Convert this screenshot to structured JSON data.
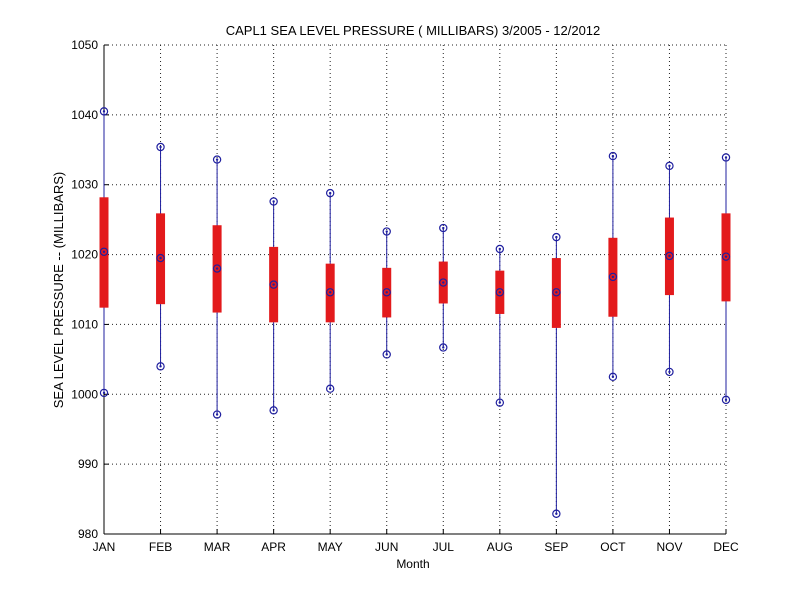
{
  "chart_data": {
    "type": "box",
    "title": "CAPL1  SEA LEVEL PRESSURE ( MILLIBARS) 3/2005 - 12/2012",
    "xlabel": "Month",
    "ylabel": "SEA LEVEL PRESSURE -- (MILLIBARS)",
    "ylim": [
      980,
      1050
    ],
    "yticks": [
      980,
      990,
      1000,
      1010,
      1020,
      1030,
      1040,
      1050
    ],
    "grid": true,
    "categories": [
      "JAN",
      "FEB",
      "MAR",
      "APR",
      "MAY",
      "JUN",
      "JUL",
      "AUG",
      "SEP",
      "OCT",
      "NOV",
      "DEC"
    ],
    "series": [
      {
        "min": [
          1000.2,
          1004.0,
          997.1,
          997.7,
          1000.8,
          1005.7,
          1006.7,
          998.8,
          982.9,
          1002.5,
          1003.2,
          999.2
        ],
        "q1": [
          1012.4,
          1012.9,
          1011.7,
          1010.3,
          1010.3,
          1011.0,
          1013.0,
          1011.5,
          1009.5,
          1011.1,
          1014.2,
          1013.3
        ],
        "median": [
          1020.4,
          1019.5,
          1018.0,
          1015.7,
          1014.6,
          1014.6,
          1016.0,
          1014.6,
          1014.6,
          1016.8,
          1019.8,
          1019.7
        ],
        "q3": [
          1028.2,
          1025.9,
          1024.2,
          1021.1,
          1018.7,
          1018.1,
          1019.0,
          1017.7,
          1019.5,
          1022.4,
          1025.3,
          1025.9
        ],
        "max": [
          1040.5,
          1035.4,
          1033.6,
          1027.6,
          1028.8,
          1023.3,
          1023.8,
          1020.8,
          1022.5,
          1034.1,
          1032.7,
          1033.9
        ]
      }
    ],
    "colors": {
      "box": "#e31a1c",
      "whisker": "#1f1f9f",
      "marker": "#1f1f9f",
      "grid": "#222222",
      "axis": "#000000"
    }
  }
}
